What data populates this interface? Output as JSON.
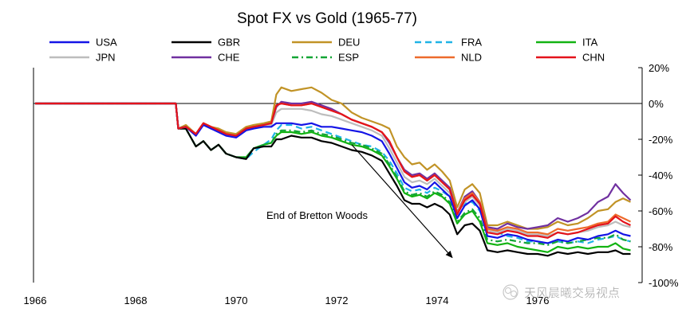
{
  "chart_data": {
    "type": "line",
    "title": "Spot FX vs Gold (1965-77)",
    "xlabel": "",
    "ylabel": "",
    "x_ticks": [
      "1966",
      "1968",
      "1970",
      "1972",
      "1974",
      "1976"
    ],
    "xlim": [
      1966,
      1978
    ],
    "y_ticks": [
      20,
      0,
      -20,
      -40,
      -60,
      -80,
      -100
    ],
    "y_tick_labels": [
      "20%",
      "0%",
      "-20%",
      "-40%",
      "-60%",
      "-80%",
      "-100%"
    ],
    "ylim": [
      -100,
      20
    ],
    "y_axis_side": "right",
    "zero_line": true,
    "grid": false,
    "legend_position": "top",
    "annotation": {
      "text": "End of Bretton Woods",
      "arrow_from": [
        1972.3,
        -23
      ],
      "arrow_to": [
        1974.3,
        -86
      ]
    },
    "x": [
      1966.0,
      1966.5,
      1967.0,
      1967.5,
      1968.0,
      1968.4,
      1968.8,
      1968.85,
      1969.0,
      1969.2,
      1969.35,
      1969.5,
      1969.65,
      1969.8,
      1970.0,
      1970.2,
      1970.35,
      1970.55,
      1970.7,
      1970.8,
      1970.9,
      1971.1,
      1971.3,
      1971.5,
      1971.7,
      1971.9,
      1972.1,
      1972.3,
      1972.5,
      1972.7,
      1972.9,
      1973.05,
      1973.2,
      1973.35,
      1973.5,
      1973.65,
      1973.8,
      1973.95,
      1974.1,
      1974.25,
      1974.4,
      1974.55,
      1974.7,
      1974.85,
      1975.0,
      1975.2,
      1975.4,
      1975.6,
      1975.8,
      1976.0,
      1976.2,
      1976.4,
      1976.6,
      1976.8,
      1977.0,
      1977.2,
      1977.4,
      1977.55,
      1977.7,
      1977.85
    ],
    "series": [
      {
        "name": "USA",
        "color": "#1414e6",
        "dash": "solid",
        "values": [
          0,
          0,
          0,
          0,
          0,
          0,
          0,
          -14,
          -13,
          -18,
          -12,
          -14,
          -16,
          -18,
          -19,
          -15,
          -14,
          -13,
          -13,
          -11,
          -11,
          -11,
          -12,
          -11,
          -13,
          -13,
          -14,
          -15,
          -16,
          -18,
          -21,
          -28,
          -36,
          -44,
          -47,
          -46,
          -48,
          -44,
          -48,
          -52,
          -64,
          -57,
          -54,
          -59,
          -74,
          -75,
          -73,
          -74,
          -76,
          -77,
          -78,
          -76,
          -77,
          -75,
          -76,
          -74,
          -73,
          -71,
          -73,
          -74
        ]
      },
      {
        "name": "GBR",
        "color": "#000000",
        "dash": "solid",
        "values": [
          0,
          0,
          0,
          0,
          0,
          0,
          0,
          -14,
          -14,
          -24,
          -21,
          -26,
          -23,
          -28,
          -30,
          -31,
          -25,
          -24,
          -24,
          -20,
          -20,
          -18,
          -19,
          -19,
          -21,
          -22,
          -24,
          -26,
          -27,
          -29,
          -32,
          -39,
          -46,
          -54,
          -56,
          -56,
          -58,
          -56,
          -58,
          -62,
          -73,
          -68,
          -67,
          -71,
          -82,
          -83,
          -82,
          -83,
          -84,
          -84,
          -85,
          -83,
          -84,
          -83,
          -84,
          -83,
          -83,
          -82,
          -84,
          -84
        ]
      },
      {
        "name": "DEU",
        "color": "#c19326",
        "dash": "solid",
        "values": [
          0,
          0,
          0,
          0,
          0,
          0,
          0,
          -14,
          -12,
          -17,
          -11,
          -13,
          -14,
          -16,
          -17,
          -13,
          -12,
          -11,
          -10,
          5,
          9,
          7,
          8,
          9,
          6,
          2,
          0,
          -5,
          -8,
          -10,
          -12,
          -14,
          -24,
          -30,
          -34,
          -33,
          -37,
          -34,
          -38,
          -43,
          -58,
          -48,
          -45,
          -50,
          -68,
          -68,
          -66,
          -68,
          -70,
          -70,
          -69,
          -66,
          -68,
          -67,
          -64,
          -60,
          -59,
          -55,
          -53,
          -55
        ]
      },
      {
        "name": "FRA",
        "color": "#1fb3e6",
        "dash": "dashed",
        "values": [
          0,
          0,
          0,
          0,
          0,
          0,
          0,
          -14,
          -14,
          -24,
          -21,
          -26,
          -23,
          -28,
          -30,
          -31,
          -27,
          -23,
          -20,
          -15,
          -12,
          -12,
          -14,
          -13,
          -15,
          -17,
          -19,
          -21,
          -23,
          -24,
          -27,
          -32,
          -39,
          -47,
          -49,
          -48,
          -50,
          -47,
          -49,
          -52,
          -60,
          -56,
          -55,
          -60,
          -69,
          -72,
          -74,
          -75,
          -77,
          -77,
          -78,
          -77,
          -78,
          -77,
          -78,
          -76,
          -75,
          -74,
          -76,
          -77
        ]
      },
      {
        "name": "ITA",
        "color": "#12b312",
        "dash": "solid",
        "values": [
          0,
          0,
          0,
          0,
          0,
          0,
          0,
          -14,
          -14,
          -24,
          -21,
          -26,
          -23,
          -28,
          -30,
          -30,
          -25,
          -23,
          -22,
          -18,
          -16,
          -16,
          -17,
          -16,
          -18,
          -19,
          -21,
          -23,
          -24,
          -26,
          -29,
          -35,
          -42,
          -50,
          -52,
          -51,
          -53,
          -50,
          -52,
          -56,
          -67,
          -62,
          -60,
          -66,
          -78,
          -79,
          -78,
          -80,
          -81,
          -82,
          -83,
          -80,
          -81,
          -80,
          -81,
          -80,
          -80,
          -78,
          -81,
          -82
        ]
      },
      {
        "name": "JPN",
        "color": "#bdbdbd",
        "dash": "solid",
        "values": [
          0,
          0,
          0,
          0,
          0,
          0,
          0,
          -14,
          -13,
          -17,
          -12,
          -14,
          -15,
          -17,
          -18,
          -14,
          -13,
          -12,
          -12,
          -5,
          -3,
          -3,
          -3,
          -4,
          -6,
          -7,
          -9,
          -11,
          -13,
          -15,
          -18,
          -25,
          -33,
          -41,
          -44,
          -43,
          -45,
          -42,
          -46,
          -50,
          -61,
          -55,
          -52,
          -57,
          -71,
          -72,
          -70,
          -71,
          -73,
          -73,
          -74,
          -72,
          -73,
          -72,
          -71,
          -69,
          -68,
          -66,
          -68,
          -69
        ]
      },
      {
        "name": "CHE",
        "color": "#7030a0",
        "dash": "solid",
        "values": [
          0,
          0,
          0,
          0,
          0,
          0,
          0,
          -14,
          -13,
          -17,
          -11,
          -14,
          -15,
          -17,
          -18,
          -14,
          -13,
          -12,
          -11,
          -2,
          1,
          0,
          0,
          1,
          -1,
          -3,
          -6,
          -9,
          -11,
          -13,
          -16,
          -22,
          -30,
          -37,
          -40,
          -39,
          -42,
          -39,
          -43,
          -47,
          -61,
          -52,
          -49,
          -55,
          -69,
          -70,
          -67,
          -69,
          -70,
          -69,
          -68,
          -64,
          -66,
          -64,
          -61,
          -55,
          -52,
          -45,
          -50,
          -54
        ]
      },
      {
        "name": "ESP",
        "color": "#12a535",
        "dash": "dashdot",
        "values": [
          0,
          0,
          0,
          0,
          0,
          0,
          0,
          -14,
          -14,
          -24,
          -21,
          -26,
          -23,
          -28,
          -30,
          -30,
          -25,
          -23,
          -22,
          -17,
          -15,
          -15,
          -16,
          -15,
          -17,
          -18,
          -20,
          -22,
          -23,
          -25,
          -28,
          -34,
          -41,
          -49,
          -51,
          -50,
          -52,
          -49,
          -51,
          -55,
          -66,
          -61,
          -59,
          -64,
          -76,
          -77,
          -76,
          -77,
          -78,
          -78,
          -79,
          -77,
          -78,
          -77,
          -76,
          -75,
          -75,
          -73,
          -76,
          -77
        ]
      },
      {
        "name": "NLD",
        "color": "#ed6b2c",
        "dash": "solid",
        "values": [
          0,
          0,
          0,
          0,
          0,
          0,
          0,
          -14,
          -13,
          -17,
          -11,
          -13,
          -15,
          -17,
          -18,
          -14,
          -13,
          -12,
          -11,
          -1,
          0,
          -1,
          -1,
          0,
          -2,
          -4,
          -6,
          -9,
          -11,
          -13,
          -16,
          -21,
          -30,
          -38,
          -41,
          -40,
          -43,
          -40,
          -44,
          -48,
          -61,
          -53,
          -50,
          -55,
          -70,
          -71,
          -69,
          -70,
          -72,
          -72,
          -73,
          -70,
          -71,
          -70,
          -69,
          -67,
          -66,
          -62,
          -64,
          -66
        ]
      },
      {
        "name": "CHN",
        "color": "#e4131b",
        "dash": "solid",
        "values": [
          0,
          0,
          0,
          0,
          0,
          0,
          0,
          -14,
          -13,
          -17,
          -11,
          -13,
          -15,
          -17,
          -18,
          -14,
          -13,
          -12,
          -11,
          -1,
          0,
          -1,
          -1,
          0,
          -2,
          -4,
          -6,
          -9,
          -11,
          -13,
          -16,
          -21,
          -30,
          -38,
          -41,
          -40,
          -43,
          -40,
          -44,
          -48,
          -62,
          -54,
          -51,
          -56,
          -72,
          -73,
          -71,
          -72,
          -74,
          -74,
          -75,
          -72,
          -73,
          -72,
          -70,
          -68,
          -67,
          -63,
          -66,
          -68
        ]
      }
    ]
  },
  "watermark": {
    "text": "天风晨曦交易视点"
  }
}
